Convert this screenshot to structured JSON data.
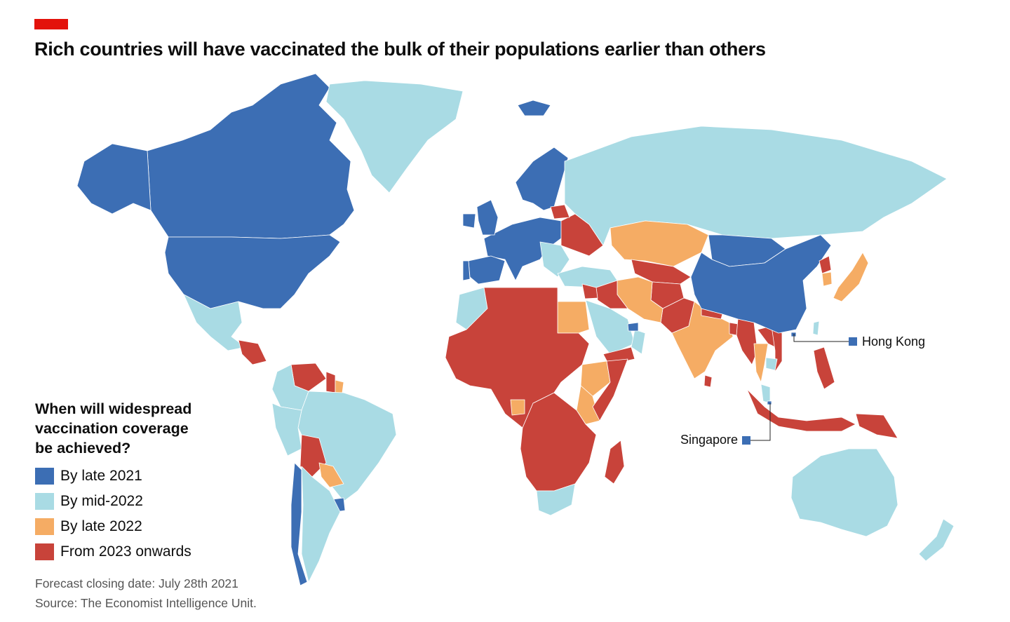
{
  "header": {
    "title": "Rich countries will have vaccinated the bulk of their populations earlier than others",
    "accent_color": "#e3120b"
  },
  "legend": {
    "title_lines": [
      "When will widespread",
      "vaccination coverage",
      "be achieved?"
    ],
    "items": [
      {
        "label": "By late 2021",
        "color": "#3c6eb4"
      },
      {
        "label": "By mid-2022",
        "color": "#a9dbe4"
      },
      {
        "label": "By late 2022",
        "color": "#f5ac64"
      },
      {
        "label": "From 2023 onwards",
        "color": "#c8433a"
      }
    ]
  },
  "callouts": {
    "hong_kong": "Hong Kong",
    "singapore": "Singapore"
  },
  "footer": {
    "forecast": "Forecast closing date: July 28th 2021",
    "source": "Source: The Economist Intelligence Unit."
  },
  "map_data": {
    "type": "choropleth",
    "regions": [
      {
        "name": "Canada",
        "category": "By late 2021"
      },
      {
        "name": "United States",
        "category": "By late 2021"
      },
      {
        "name": "Alaska",
        "category": "By late 2021"
      },
      {
        "name": "Greenland",
        "category": "By mid-2022"
      },
      {
        "name": "Iceland",
        "category": "By late 2021"
      },
      {
        "name": "Mexico",
        "category": "By mid-2022"
      },
      {
        "name": "Central America",
        "category": "From 2023 onwards"
      },
      {
        "name": "Venezuela",
        "category": "From 2023 onwards"
      },
      {
        "name": "Guyana",
        "category": "From 2023 onwards"
      },
      {
        "name": "Suriname",
        "category": "By late 2022"
      },
      {
        "name": "Colombia",
        "category": "By mid-2022"
      },
      {
        "name": "Brazil",
        "category": "By mid-2022"
      },
      {
        "name": "Peru",
        "category": "By mid-2022"
      },
      {
        "name": "Bolivia",
        "category": "From 2023 onwards"
      },
      {
        "name": "Paraguay",
        "category": "By late 2022"
      },
      {
        "name": "Uruguay",
        "category": "By late 2021"
      },
      {
        "name": "Chile",
        "category": "By late 2021"
      },
      {
        "name": "Argentina",
        "category": "By mid-2022"
      },
      {
        "name": "Scandinavia",
        "category": "By late 2021"
      },
      {
        "name": "Western Europe",
        "category": "By late 2021"
      },
      {
        "name": "United Kingdom",
        "category": "By late 2021"
      },
      {
        "name": "Ireland",
        "category": "By late 2021"
      },
      {
        "name": "Spain",
        "category": "By late 2021"
      },
      {
        "name": "Portugal",
        "category": "By late 2021"
      },
      {
        "name": "Ukraine",
        "category": "From 2023 onwards"
      },
      {
        "name": "Belarus",
        "category": "From 2023 onwards"
      },
      {
        "name": "Balkans",
        "category": "By mid-2022"
      },
      {
        "name": "Russia",
        "category": "By mid-2022"
      },
      {
        "name": "Turkey",
        "category": "By mid-2022"
      },
      {
        "name": "Kazakhstan",
        "category": "By late 2022"
      },
      {
        "name": "Central Asia",
        "category": "From 2023 onwards"
      },
      {
        "name": "Afghanistan",
        "category": "From 2023 onwards"
      },
      {
        "name": "Pakistan",
        "category": "From 2023 onwards"
      },
      {
        "name": "Iran",
        "category": "By late 2022"
      },
      {
        "name": "Iraq",
        "category": "From 2023 onwards"
      },
      {
        "name": "Syria",
        "category": "From 2023 onwards"
      },
      {
        "name": "Saudi Arabia",
        "category": "By mid-2022"
      },
      {
        "name": "Yemen",
        "category": "From 2023 onwards"
      },
      {
        "name": "Oman",
        "category": "By mid-2022"
      },
      {
        "name": "UAE",
        "category": "By late 2021"
      },
      {
        "name": "Egypt",
        "category": "By late 2022"
      },
      {
        "name": "Morocco",
        "category": "By mid-2022"
      },
      {
        "name": "North and Central Africa",
        "category": "From 2023 onwards"
      },
      {
        "name": "Ethiopia",
        "category": "By late 2022"
      },
      {
        "name": "Kenya",
        "category": "By late 2022"
      },
      {
        "name": "Somalia",
        "category": "From 2023 onwards"
      },
      {
        "name": "Gabon",
        "category": "By late 2022"
      },
      {
        "name": "Southern Africa",
        "category": "From 2023 onwards"
      },
      {
        "name": "South Africa",
        "category": "By mid-2022"
      },
      {
        "name": "Madagascar",
        "category": "From 2023 onwards"
      },
      {
        "name": "India",
        "category": "By late 2022"
      },
      {
        "name": "Nepal",
        "category": "From 2023 onwards"
      },
      {
        "name": "Bangladesh",
        "category": "From 2023 onwards"
      },
      {
        "name": "Sri Lanka",
        "category": "From 2023 onwards"
      },
      {
        "name": "Myanmar",
        "category": "From 2023 onwards"
      },
      {
        "name": "Thailand",
        "category": "By late 2022"
      },
      {
        "name": "Laos",
        "category": "From 2023 onwards"
      },
      {
        "name": "Vietnam",
        "category": "From 2023 onwards"
      },
      {
        "name": "Cambodia",
        "category": "By mid-2022"
      },
      {
        "name": "Malaysia",
        "category": "By mid-2022"
      },
      {
        "name": "Indonesia",
        "category": "From 2023 onwards"
      },
      {
        "name": "Philippines",
        "category": "From 2023 onwards"
      },
      {
        "name": "Papua New Guinea",
        "category": "From 2023 onwards"
      },
      {
        "name": "Mongolia",
        "category": "By late 2021"
      },
      {
        "name": "China",
        "category": "By late 2021"
      },
      {
        "name": "Hong Kong",
        "category": "By late 2021"
      },
      {
        "name": "Singapore",
        "category": "By late 2021"
      },
      {
        "name": "North Korea",
        "category": "From 2023 onwards"
      },
      {
        "name": "South Korea",
        "category": "By late 2022"
      },
      {
        "name": "Japan",
        "category": "By late 2022"
      },
      {
        "name": "Taiwan",
        "category": "By mid-2022"
      },
      {
        "name": "Australia",
        "category": "By mid-2022"
      },
      {
        "name": "New Zealand",
        "category": "By mid-2022"
      }
    ]
  }
}
